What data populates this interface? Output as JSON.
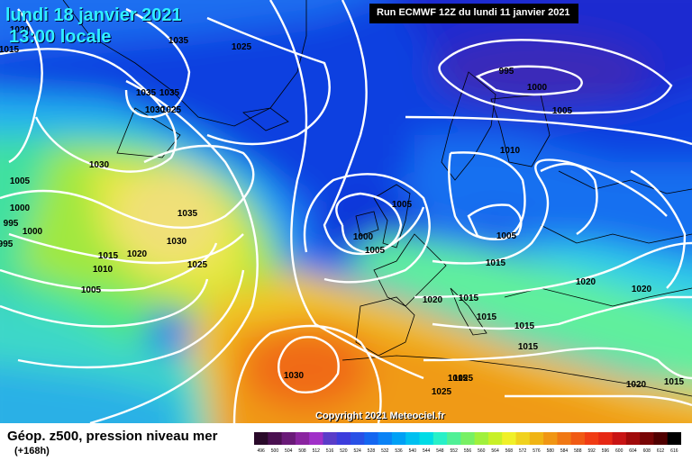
{
  "header": {
    "date": "lundi 18 janvier 2021",
    "time": "13:00 locale"
  },
  "run_info": "Run ECMWF 12Z du lundi 11 janvier 2021",
  "copyright": "Copyright 2021 Meteociel.fr",
  "footer": {
    "title": "Géop. z500, pression niveau mer",
    "subtitle": "(+168h)"
  },
  "pressure_labels": [
    {
      "text": "1020"
    },
    {
      "text": "1015"
    },
    {
      "text": "1035"
    },
    {
      "text": "1025"
    },
    {
      "text": "1035"
    },
    {
      "text": "1035"
    },
    {
      "text": "1030"
    },
    {
      "text": "1025"
    },
    {
      "text": "995"
    },
    {
      "text": "1000"
    },
    {
      "text": "1005"
    },
    {
      "text": "1010"
    },
    {
      "text": "1030"
    },
    {
      "text": "1005"
    },
    {
      "text": "1000"
    },
    {
      "text": "995"
    },
    {
      "text": "1000"
    },
    {
      "text": "995"
    },
    {
      "text": "1035"
    },
    {
      "text": "1030"
    },
    {
      "text": "1005"
    },
    {
      "text": "1000"
    },
    {
      "text": "1005"
    },
    {
      "text": "1005"
    },
    {
      "text": "1015"
    },
    {
      "text": "1020"
    },
    {
      "text": "1010"
    },
    {
      "text": "1025"
    },
    {
      "text": "1005"
    },
    {
      "text": "1015"
    },
    {
      "text": "1020"
    },
    {
      "text": "1015"
    },
    {
      "text": "1020"
    },
    {
      "text": "1015"
    },
    {
      "text": "1020"
    },
    {
      "text": "1015"
    },
    {
      "text": "1015"
    },
    {
      "text": "1015"
    },
    {
      "text": "1030"
    },
    {
      "text": "1025"
    },
    {
      "text": "1025"
    },
    {
      "text": "1020"
    },
    {
      "text": "1015"
    }
  ],
  "colorbar": {
    "labels": [
      "496",
      "500",
      "504",
      "508",
      "512",
      "516",
      "520",
      "524",
      "528",
      "532",
      "536",
      "540",
      "544",
      "548",
      "552",
      "556",
      "560",
      "564",
      "568",
      "572",
      "576",
      "580",
      "584",
      "588",
      "592",
      "596",
      "600",
      "604",
      "608",
      "612",
      "616"
    ],
    "colors": [
      "#2a0a2a",
      "#4a1050",
      "#6a1a78",
      "#8a24a0",
      "#a030c8",
      "#5a3cc8",
      "#3c3cdc",
      "#2850e6",
      "#1466f0",
      "#0a82f5",
      "#00a0f5",
      "#00c0f0",
      "#00dce6",
      "#28f0c8",
      "#50f096",
      "#78f064",
      "#a0f03c",
      "#c8f028",
      "#f0f028",
      "#f0d21e",
      "#f0b414",
      "#f09614",
      "#f07814",
      "#f05a14",
      "#f03c14",
      "#e62814",
      "#c81414",
      "#a00a0a",
      "#780505",
      "#500000",
      "#000000"
    ]
  }
}
